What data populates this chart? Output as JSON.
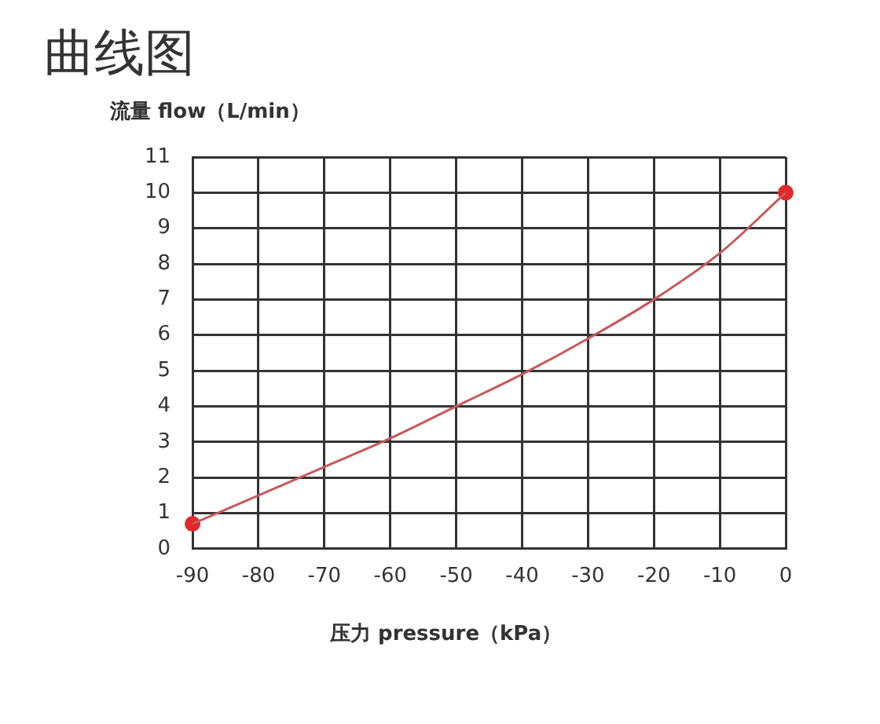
{
  "chart_data": {
    "type": "line",
    "title": "曲线图",
    "ylabel": "流量 flow（L/min）",
    "xlabel": "压力 pressure（kPa）",
    "series": [
      {
        "type": "line",
        "marker": "none",
        "color": "#c8585a",
        "x": [
          -90,
          -80,
          -70,
          -60,
          -50,
          -40,
          -30,
          -20,
          -10,
          0
        ],
        "values": [
          0.7,
          1.5,
          2.3,
          3.1,
          4.0,
          4.9,
          5.9,
          7.0,
          8.3,
          10
        ]
      },
      {
        "type": "scatter",
        "marker": "circle",
        "color": "#e02a2a",
        "x": [
          -90,
          0
        ],
        "values": [
          0.7,
          10
        ]
      }
    ],
    "xlim": [
      -90,
      0
    ],
    "xticks": [
      -90,
      -80,
      -70,
      -60,
      -50,
      -40,
      -30,
      -20,
      -10,
      0
    ],
    "ylim": [
      0,
      11
    ],
    "yticks": [
      0,
      1,
      2,
      3,
      4,
      5,
      6,
      7,
      8,
      9,
      10,
      11
    ],
    "grid": true,
    "line_style": "solid",
    "legend": false
  }
}
